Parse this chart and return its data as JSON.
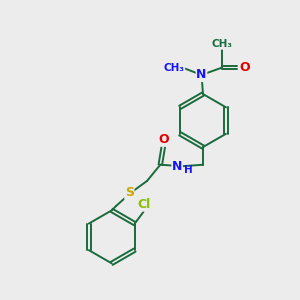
{
  "bg_color": "#ececec",
  "bond_color": "#1a6b3c",
  "n_color": "#1414ff",
  "o_color": "#e00000",
  "cl_color": "#88c000",
  "s_color": "#c8a800",
  "line_width": 1.4,
  "figsize": [
    3.0,
    3.0
  ],
  "dpi": 100,
  "xlim": [
    0,
    10
  ],
  "ylim": [
    0,
    10
  ]
}
